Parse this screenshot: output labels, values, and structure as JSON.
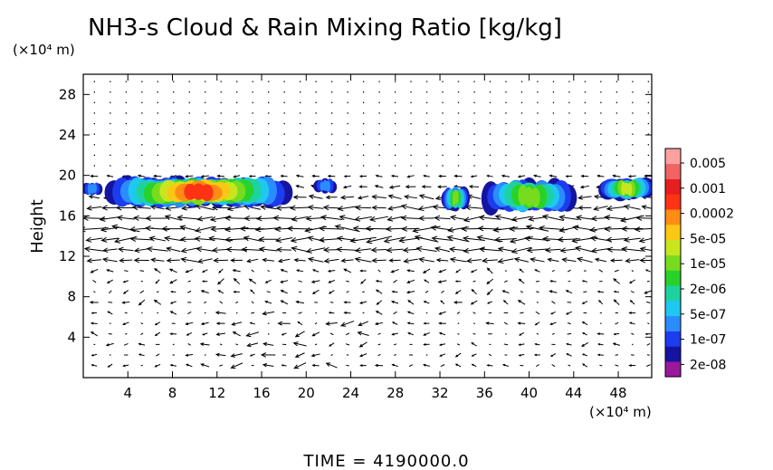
{
  "chart_data": {
    "type": "heatmap",
    "title": "NH3-s Cloud & Rain Mixing Ratio [kg/kg]",
    "xunit": "(×10⁴ m)",
    "yunit": "(×10⁴ m)",
    "ylabel": "Height",
    "xlim": [
      0,
      51
    ],
    "ylim": [
      0,
      30
    ],
    "xticks": [
      "4",
      "8",
      "12",
      "16",
      "20",
      "24",
      "28",
      "32",
      "36",
      "40",
      "44",
      "48"
    ],
    "xtick_values": [
      4,
      8,
      12,
      16,
      20,
      24,
      28,
      32,
      36,
      40,
      44,
      48
    ],
    "yticks": [
      "4",
      "8",
      "12",
      "16",
      "20",
      "24",
      "28"
    ],
    "ytick_values": [
      4,
      8,
      12,
      16,
      20,
      24,
      28
    ],
    "colorbar": {
      "labels": [
        "0.005",
        "0.001",
        "0.0002",
        "5e-05",
        "1e-05",
        "2e-06",
        "5e-07",
        "1e-07",
        "2e-08"
      ],
      "colors": [
        "#9a189a",
        "#1414a0",
        "#1c3cf0",
        "#2a8cff",
        "#1ec8f0",
        "#1ed2a0",
        "#28d228",
        "#78dc1e",
        "#c8e61e",
        "#fac814",
        "#ff8c14",
        "#ff3214",
        "#e61e1e",
        "#f06464",
        "#ffa0a0"
      ]
    },
    "cloud_regions": [
      {
        "xrange": [
          0,
          1.6
        ],
        "yrange": [
          18.0,
          19.4
        ],
        "peak": "1e-07"
      },
      {
        "xrange": [
          2.2,
          18.5
        ],
        "yrange": [
          16.9,
          19.9
        ],
        "peak": "0.0002"
      },
      {
        "xrange": [
          20.8,
          22.6
        ],
        "yrange": [
          18.2,
          19.7
        ],
        "peak": "1e-07"
      },
      {
        "xrange": [
          32.3,
          34.5
        ],
        "yrange": [
          16.6,
          18.9
        ],
        "peak": "1e-05"
      },
      {
        "xrange": [
          36.0,
          44.0
        ],
        "yrange": [
          16.3,
          19.6
        ],
        "peak": "1e-05"
      },
      {
        "xrange": [
          46.5,
          51.0
        ],
        "yrange": [
          17.6,
          19.8
        ],
        "peak": "5e-05"
      }
    ],
    "wind_vectors": "present",
    "time_label": "TIME  =  4190000.0"
  }
}
